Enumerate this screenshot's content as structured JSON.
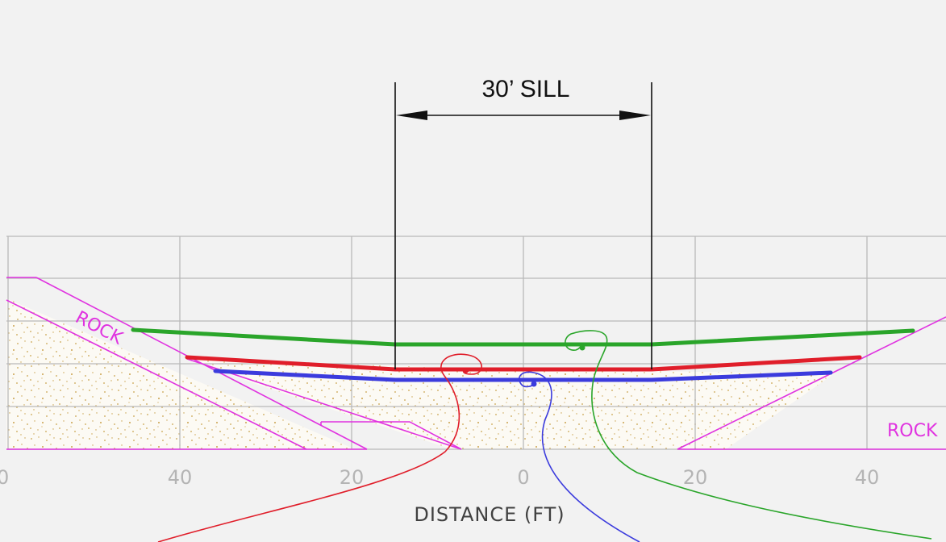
{
  "sill_label": "30’ SILL",
  "axis": {
    "title": "DISTANCE (FT)",
    "ticks": [
      "0",
      "40",
      "20",
      "0",
      "20",
      "40"
    ]
  },
  "labels": {
    "rock_left": "ROCK",
    "rock_right": "ROCK"
  },
  "colors": {
    "grid": "#b9b9b9",
    "rock": "#e033e0",
    "sand": "#caa24c",
    "green": "#2aa52a",
    "red": "#e01e2a",
    "blue": "#3b3bdd",
    "dimension": "#111111"
  }
}
